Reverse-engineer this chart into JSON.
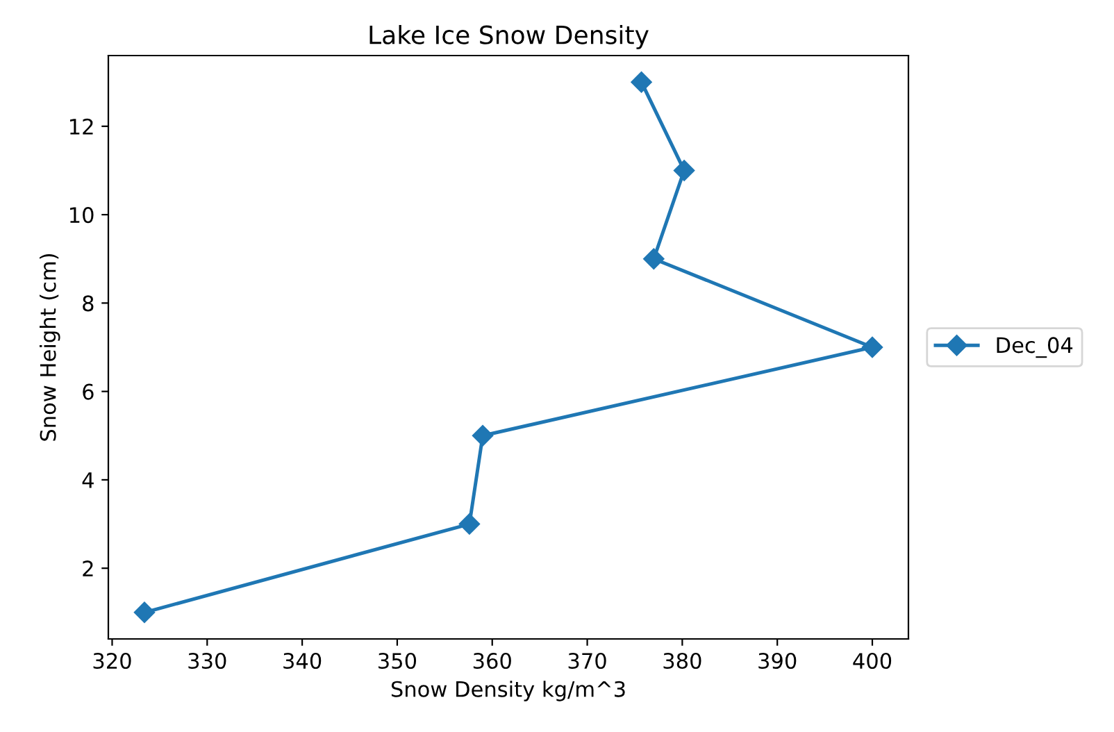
{
  "chart_data": {
    "type": "line",
    "title": "Lake Ice Snow Density",
    "xlabel": "Snow Density kg/m^3",
    "ylabel": "Snow Height (cm)",
    "series": [
      {
        "name": "Dec_04",
        "color": "#1f77b4",
        "x": [
          323.4,
          357.6,
          359.0,
          400.0,
          377.0,
          380.2,
          375.7
        ],
        "values": [
          1,
          3,
          5,
          7,
          9,
          11,
          13
        ]
      }
    ],
    "xlim": [
      319.6,
      403.8
    ],
    "ylim": [
      0.4,
      13.6
    ],
    "xticks": [
      320,
      330,
      340,
      350,
      360,
      370,
      380,
      390,
      400
    ],
    "yticks": [
      2,
      4,
      6,
      8,
      10,
      12
    ],
    "marker": "diamond",
    "line_style": "solid",
    "grid": false,
    "legend": "right"
  }
}
